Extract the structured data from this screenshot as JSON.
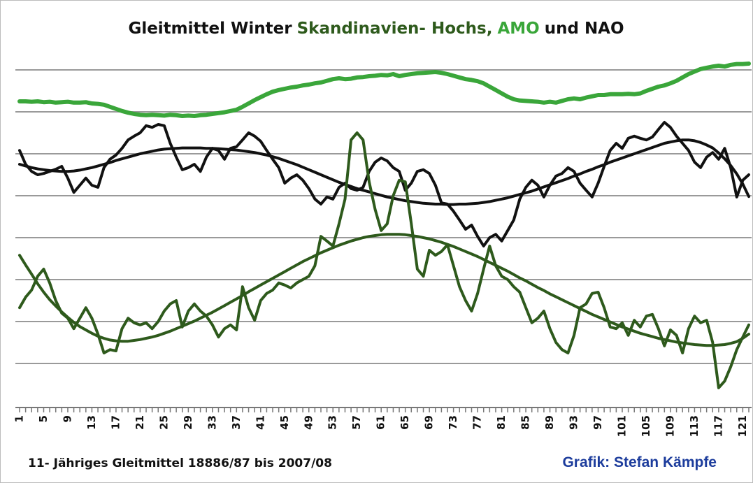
{
  "chart_data": {
    "type": "line",
    "title_parts": [
      "Gleitmittel Winter",
      "Skandinavien- Hochs,",
      "AMO",
      "und NAO"
    ],
    "title_colors": [
      "#111111",
      "#2e5a1c",
      "#3aa63a",
      "#111111"
    ],
    "footnote": "11- Jähriges Gleitmittel 18886/87 bis 2007/08",
    "credit": "Grafik: Stefan Kämpfe",
    "credit_color": "#1c3c9c",
    "x": [
      1,
      2,
      3,
      4,
      5,
      6,
      7,
      8,
      9,
      10,
      11,
      12,
      13,
      14,
      15,
      16,
      17,
      18,
      19,
      20,
      21,
      22,
      23,
      24,
      25,
      26,
      27,
      28,
      29,
      30,
      31,
      32,
      33,
      34,
      35,
      36,
      37,
      38,
      39,
      40,
      41,
      42,
      43,
      44,
      45,
      46,
      47,
      48,
      49,
      50,
      51,
      52,
      53,
      54,
      55,
      56,
      57,
      58,
      59,
      60,
      61,
      62,
      63,
      64,
      65,
      66,
      67,
      68,
      69,
      70,
      71,
      72,
      73,
      74,
      75,
      76,
      77,
      78,
      79,
      80,
      81,
      82,
      83,
      84,
      85,
      86,
      87,
      88,
      89,
      90,
      91,
      92,
      93,
      94,
      95,
      96,
      97,
      98,
      99,
      100,
      101,
      102,
      103,
      104,
      105,
      106,
      107,
      108,
      109,
      110,
      111,
      112,
      113,
      114,
      115,
      116,
      117,
      118,
      119,
      120,
      121,
      122
    ],
    "xlim": [
      1,
      122
    ],
    "xticks": [
      1,
      5,
      9,
      13,
      17,
      21,
      25,
      29,
      33,
      37,
      41,
      45,
      49,
      53,
      57,
      61,
      65,
      69,
      73,
      77,
      81,
      85,
      89,
      93,
      97,
      101,
      105,
      109,
      113,
      117,
      121
    ],
    "ylim": [
      0,
      9
    ],
    "yticks": [
      1,
      2,
      3,
      4,
      5,
      6,
      7,
      8
    ],
    "grid": true,
    "series": [
      {
        "color": "#3aa63a",
        "line_width": 6,
        "values": [
          7.25,
          7.25,
          7.24,
          7.25,
          7.23,
          7.24,
          7.22,
          7.23,
          7.24,
          7.22,
          7.22,
          7.23,
          7.2,
          7.19,
          7.17,
          7.12,
          7.07,
          7.02,
          6.98,
          6.95,
          6.93,
          6.92,
          6.93,
          6.92,
          6.91,
          6.93,
          6.92,
          6.9,
          6.91,
          6.9,
          6.92,
          6.93,
          6.95,
          6.97,
          6.99,
          7.02,
          7.05,
          7.12,
          7.2,
          7.28,
          7.35,
          7.42,
          7.48,
          7.52,
          7.55,
          7.58,
          7.6,
          7.63,
          7.65,
          7.68,
          7.7,
          7.74,
          7.78,
          7.8,
          7.78,
          7.79,
          7.82,
          7.83,
          7.85,
          7.86,
          7.88,
          7.87,
          7.9,
          7.85,
          7.88,
          7.9,
          7.92,
          7.93,
          7.94,
          7.95,
          7.93,
          7.9,
          7.86,
          7.82,
          7.78,
          7.76,
          7.73,
          7.68,
          7.6,
          7.52,
          7.44,
          7.36,
          7.3,
          7.27,
          7.26,
          7.25,
          7.24,
          7.22,
          7.24,
          7.22,
          7.26,
          7.3,
          7.32,
          7.3,
          7.34,
          7.37,
          7.4,
          7.4,
          7.42,
          7.42,
          7.42,
          7.43,
          7.42,
          7.44,
          7.5,
          7.55,
          7.6,
          7.63,
          7.68,
          7.74,
          7.82,
          7.9,
          7.96,
          8.02,
          8.05,
          8.08,
          8.1,
          8.08,
          8.12,
          8.14,
          8.14,
          8.15
        ]
      },
      {
        "color": "#111111",
        "line_width": 4,
        "values": [
          6.08,
          5.75,
          5.58,
          5.5,
          5.53,
          5.58,
          5.63,
          5.7,
          5.42,
          5.08,
          5.25,
          5.42,
          5.25,
          5.2,
          5.67,
          5.87,
          5.97,
          6.13,
          6.33,
          6.42,
          6.5,
          6.67,
          6.63,
          6.7,
          6.67,
          6.25,
          5.92,
          5.62,
          5.67,
          5.75,
          5.58,
          5.92,
          6.13,
          6.08,
          5.87,
          6.13,
          6.17,
          6.33,
          6.5,
          6.42,
          6.3,
          6.08,
          5.87,
          5.67,
          5.3,
          5.42,
          5.5,
          5.37,
          5.17,
          4.92,
          4.8,
          4.97,
          4.92,
          5.2,
          5.3,
          5.17,
          5.13,
          5.2,
          5.58,
          5.8,
          5.9,
          5.83,
          5.67,
          5.58,
          5.13,
          5.3,
          5.58,
          5.62,
          5.53,
          5.25,
          4.83,
          4.8,
          4.63,
          4.42,
          4.2,
          4.3,
          4.03,
          3.8,
          4.0,
          4.08,
          3.92,
          4.17,
          4.42,
          4.92,
          5.2,
          5.37,
          5.25,
          4.97,
          5.25,
          5.47,
          5.53,
          5.67,
          5.58,
          5.3,
          5.13,
          4.97,
          5.3,
          5.7,
          6.08,
          6.25,
          6.13,
          6.37,
          6.42,
          6.37,
          6.33,
          6.4,
          6.58,
          6.75,
          6.63,
          6.42,
          6.25,
          6.08,
          5.8,
          5.67,
          5.92,
          6.03,
          5.87,
          6.13,
          5.67,
          4.97,
          5.37,
          5.5
        ]
      },
      {
        "color": "#111111",
        "line_width": 4,
        "values": [
          5.75,
          5.71,
          5.67,
          5.64,
          5.62,
          5.6,
          5.59,
          5.58,
          5.58,
          5.59,
          5.61,
          5.64,
          5.67,
          5.71,
          5.75,
          5.79,
          5.84,
          5.88,
          5.92,
          5.96,
          6.0,
          6.03,
          6.06,
          6.09,
          6.11,
          6.12,
          6.13,
          6.14,
          6.14,
          6.14,
          6.14,
          6.13,
          6.13,
          6.12,
          6.11,
          6.1,
          6.09,
          6.07,
          6.05,
          6.03,
          6.0,
          5.97,
          5.93,
          5.89,
          5.84,
          5.79,
          5.74,
          5.68,
          5.62,
          5.56,
          5.5,
          5.44,
          5.38,
          5.32,
          5.27,
          5.22,
          5.17,
          5.13,
          5.09,
          5.05,
          5.01,
          4.97,
          4.94,
          4.91,
          4.88,
          4.86,
          4.84,
          4.82,
          4.81,
          4.8,
          4.8,
          4.79,
          4.79,
          4.8,
          4.8,
          4.81,
          4.82,
          4.84,
          4.86,
          4.89,
          4.92,
          4.95,
          4.99,
          5.03,
          5.07,
          5.11,
          5.16,
          5.21,
          5.26,
          5.31,
          5.36,
          5.41,
          5.47,
          5.52,
          5.58,
          5.63,
          5.69,
          5.74,
          5.8,
          5.85,
          5.9,
          5.95,
          6.0,
          6.05,
          6.1,
          6.15,
          6.2,
          6.25,
          6.28,
          6.31,
          6.33,
          6.33,
          6.31,
          6.27,
          6.21,
          6.14,
          6.02,
          5.88,
          5.72,
          5.52,
          5.28,
          4.98
        ]
      },
      {
        "color": "#2e5a1c",
        "line_width": 4,
        "values": [
          2.33,
          2.58,
          2.75,
          3.08,
          3.25,
          2.92,
          2.5,
          2.2,
          2.08,
          1.83,
          2.08,
          2.33,
          2.08,
          1.7,
          1.25,
          1.33,
          1.3,
          1.83,
          2.08,
          1.97,
          1.92,
          1.97,
          1.83,
          2.0,
          2.25,
          2.42,
          2.5,
          1.87,
          2.25,
          2.42,
          2.25,
          2.13,
          1.92,
          1.63,
          1.83,
          1.92,
          1.8,
          2.83,
          2.33,
          2.03,
          2.5,
          2.67,
          2.75,
          2.92,
          2.87,
          2.8,
          2.92,
          3.0,
          3.08,
          3.33,
          4.03,
          3.92,
          3.8,
          4.33,
          4.92,
          6.33,
          6.5,
          6.33,
          5.33,
          4.67,
          4.17,
          4.33,
          5.0,
          5.37,
          5.33,
          4.33,
          3.25,
          3.08,
          3.7,
          3.58,
          3.67,
          3.83,
          3.33,
          2.83,
          2.5,
          2.25,
          2.67,
          3.25,
          3.8,
          3.33,
          3.08,
          3.0,
          2.83,
          2.7,
          2.33,
          1.97,
          2.08,
          2.25,
          1.83,
          1.5,
          1.33,
          1.25,
          1.67,
          2.33,
          2.42,
          2.67,
          2.7,
          2.33,
          1.87,
          1.83,
          1.97,
          1.67,
          2.03,
          1.87,
          2.13,
          2.17,
          1.83,
          1.42,
          1.8,
          1.67,
          1.25,
          1.83,
          2.13,
          1.97,
          2.03,
          1.5,
          0.42,
          0.58,
          0.92,
          1.33,
          1.63,
          1.92
        ]
      },
      {
        "color": "#2e5a1c",
        "line_width": 4,
        "values": [
          3.58,
          3.35,
          3.13,
          2.9,
          2.7,
          2.52,
          2.37,
          2.23,
          2.1,
          1.98,
          1.88,
          1.8,
          1.72,
          1.65,
          1.6,
          1.56,
          1.54,
          1.53,
          1.53,
          1.55,
          1.57,
          1.6,
          1.63,
          1.67,
          1.72,
          1.77,
          1.83,
          1.89,
          1.95,
          2.01,
          2.08,
          2.15,
          2.22,
          2.3,
          2.38,
          2.46,
          2.54,
          2.62,
          2.71,
          2.79,
          2.87,
          2.95,
          3.03,
          3.11,
          3.19,
          3.27,
          3.35,
          3.43,
          3.5,
          3.57,
          3.64,
          3.7,
          3.76,
          3.82,
          3.87,
          3.92,
          3.96,
          4.0,
          4.03,
          4.05,
          4.07,
          4.08,
          4.08,
          4.08,
          4.07,
          4.05,
          4.03,
          4.0,
          3.97,
          3.93,
          3.89,
          3.84,
          3.79,
          3.73,
          3.67,
          3.61,
          3.55,
          3.48,
          3.41,
          3.34,
          3.27,
          3.2,
          3.12,
          3.04,
          2.97,
          2.89,
          2.81,
          2.74,
          2.66,
          2.59,
          2.52,
          2.45,
          2.38,
          2.31,
          2.24,
          2.17,
          2.11,
          2.05,
          1.99,
          1.93,
          1.87,
          1.82,
          1.77,
          1.72,
          1.68,
          1.64,
          1.6,
          1.57,
          1.54,
          1.51,
          1.49,
          1.47,
          1.45,
          1.44,
          1.43,
          1.43,
          1.44,
          1.45,
          1.48,
          1.52,
          1.6,
          1.7
        ]
      }
    ]
  }
}
